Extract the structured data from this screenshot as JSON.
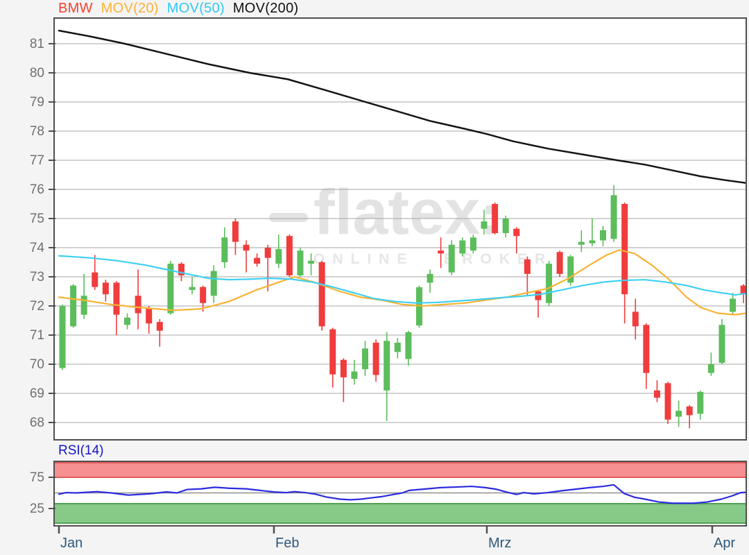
{
  "legend": {
    "symbol": "BMW",
    "mov20": "MOV(20)",
    "mov50": "MOV(50)",
    "mov200": "MOV(200)"
  },
  "watermark": {
    "logo": "flatex",
    "tagline": "ONLINE BROKER"
  },
  "rsi_label": "RSI(14)",
  "axes": {
    "price_ticks": [
      "81",
      "80",
      "79",
      "78",
      "77",
      "76",
      "75",
      "74",
      "73",
      "72",
      "71",
      "70",
      "69",
      "68"
    ],
    "rsi_ticks": [
      "75",
      "25"
    ],
    "months": [
      "Jan",
      "Feb",
      "Mrz",
      "Apr"
    ]
  },
  "colors": {
    "background": "#f4f4f5",
    "plot_background": "#ffffff",
    "gridline": "#a6a6a6",
    "border": "#4f4f4f",
    "candle_up": "#5bbd5b",
    "candle_down": "#f03c3c",
    "mov20": "#f9b234",
    "mov50": "#3fd0f2",
    "mov200": "#141414",
    "rsi_line": "#2b2be0",
    "rsi_overbought_fill": "#f79090",
    "rsi_overbought_edge": "#e25b5b",
    "rsi_oversold_fill": "#87ca87",
    "rsi_oversold_edge": "#4fa052",
    "rsi_midline": "#8f8f8f",
    "axis_text": "#6f6f6f",
    "month_text": "#2e5878",
    "rsi_label_text": "#1414c8",
    "watermark": "#e3e3e3"
  },
  "chart_data": [
    {
      "type": "candlestick",
      "title": "BMW",
      "x_axis": {
        "tick_labels": [
          "Jan",
          "Feb",
          "Mrz",
          "Apr"
        ]
      },
      "y_axis": {
        "tick_labels": [
          81,
          80,
          79,
          78,
          77,
          76,
          75,
          74,
          73,
          72,
          71,
          70,
          69,
          68
        ],
        "range": [
          67.4,
          81.9
        ]
      },
      "grid": true,
      "candles_ohlc": [
        [
          69.87,
          72.05,
          69.8,
          72.0
        ],
        [
          71.3,
          72.75,
          71.25,
          72.7
        ],
        [
          71.7,
          73.1,
          71.55,
          72.35
        ],
        [
          73.15,
          73.75,
          72.55,
          72.65
        ],
        [
          72.8,
          72.9,
          72.15,
          72.4
        ],
        [
          72.8,
          72.85,
          71.0,
          71.7
        ],
        [
          71.35,
          71.75,
          71.2,
          71.6
        ],
        [
          72.35,
          73.25,
          71.2,
          71.75
        ],
        [
          71.9,
          72.0,
          71.05,
          71.4
        ],
        [
          71.45,
          71.55,
          70.6,
          71.15
        ],
        [
          71.75,
          73.55,
          71.7,
          73.45
        ],
        [
          73.45,
          73.5,
          72.85,
          73.05
        ],
        [
          72.55,
          73.0,
          72.4,
          72.65
        ],
        [
          72.65,
          72.7,
          71.8,
          72.1
        ],
        [
          72.35,
          73.4,
          72.1,
          73.2
        ],
        [
          73.5,
          74.7,
          73.3,
          74.35
        ],
        [
          74.9,
          75.0,
          73.75,
          74.2
        ],
        [
          74.1,
          74.25,
          73.15,
          73.9
        ],
        [
          73.65,
          73.8,
          73.35,
          73.45
        ],
        [
          74.0,
          74.1,
          72.5,
          73.65
        ],
        [
          73.45,
          74.45,
          73.3,
          73.95
        ],
        [
          74.4,
          74.45,
          73.0,
          73.05
        ],
        [
          73.05,
          74.0,
          73.0,
          73.9
        ],
        [
          73.45,
          73.8,
          73.05,
          73.55
        ],
        [
          73.5,
          73.55,
          71.15,
          71.3
        ],
        [
          71.2,
          71.25,
          69.2,
          69.65
        ],
        [
          70.15,
          70.2,
          68.7,
          69.55
        ],
        [
          69.5,
          70.15,
          69.3,
          69.75
        ],
        [
          69.83,
          70.8,
          69.6,
          70.54
        ],
        [
          70.74,
          70.85,
          69.4,
          69.63
        ],
        [
          69.1,
          71.1,
          68.05,
          70.8
        ],
        [
          70.42,
          70.9,
          70.2,
          70.74
        ],
        [
          70.18,
          71.15,
          69.95,
          71.1
        ],
        [
          71.33,
          72.7,
          71.25,
          72.64
        ],
        [
          72.8,
          73.25,
          72.45,
          73.1
        ],
        [
          73.9,
          74.35,
          73.3,
          73.8
        ],
        [
          73.15,
          74.25,
          73.05,
          74.1
        ],
        [
          73.8,
          74.35,
          73.7,
          74.25
        ],
        [
          73.9,
          74.45,
          73.8,
          74.35
        ],
        [
          74.65,
          75.3,
          74.45,
          74.9
        ],
        [
          75.5,
          75.55,
          74.45,
          74.5
        ],
        [
          74.5,
          75.1,
          74.35,
          75.0
        ],
        [
          74.65,
          74.7,
          73.8,
          74.4
        ],
        [
          73.6,
          73.7,
          72.35,
          73.1
        ],
        [
          72.5,
          72.55,
          71.6,
          72.2
        ],
        [
          72.1,
          73.55,
          72.0,
          73.45
        ],
        [
          73.85,
          73.9,
          73.0,
          73.1
        ],
        [
          72.8,
          73.75,
          72.7,
          73.7
        ],
        [
          74.1,
          74.6,
          73.85,
          74.2
        ],
        [
          74.15,
          75.0,
          74.05,
          74.25
        ],
        [
          74.25,
          74.75,
          74.05,
          74.6
        ],
        [
          74.3,
          76.15,
          74.2,
          75.8
        ],
        [
          75.5,
          75.55,
          71.4,
          72.4
        ],
        [
          71.8,
          72.25,
          70.85,
          71.3
        ],
        [
          71.35,
          71.4,
          69.15,
          69.7
        ],
        [
          69.1,
          69.45,
          68.7,
          68.85
        ],
        [
          69.35,
          69.4,
          67.95,
          68.1
        ],
        [
          68.2,
          68.75,
          67.85,
          68.4
        ],
        [
          68.55,
          68.6,
          67.8,
          68.25
        ],
        [
          68.3,
          69.1,
          68.1,
          69.05
        ],
        [
          69.7,
          70.4,
          69.6,
          70.0
        ],
        [
          70.05,
          71.55,
          70.0,
          71.35
        ],
        [
          71.8,
          72.45,
          71.7,
          72.25
        ],
        [
          72.7,
          72.75,
          72.1,
          72.4
        ]
      ],
      "series": [
        {
          "name": "MOV(20)",
          "color": "#f9b234",
          "points": [
            [
              85,
              72.3
            ],
            [
              120,
              72.2
            ],
            [
              160,
              72.05
            ],
            [
              200,
              71.95
            ],
            [
              250,
              71.85
            ],
            [
              290,
              71.9
            ],
            [
              330,
              72.15
            ],
            [
              370,
              72.55
            ],
            [
              400,
              72.8
            ],
            [
              425,
              73.0
            ],
            [
              455,
              72.8
            ],
            [
              490,
              72.5
            ],
            [
              520,
              72.3
            ],
            [
              550,
              72.2
            ],
            [
              580,
              72.05
            ],
            [
              610,
              72.0
            ],
            [
              640,
              72.05
            ],
            [
              670,
              72.1
            ],
            [
              700,
              72.2
            ],
            [
              730,
              72.3
            ],
            [
              760,
              72.45
            ],
            [
              790,
              72.6
            ],
            [
              820,
              72.95
            ],
            [
              850,
              73.4
            ],
            [
              875,
              73.75
            ],
            [
              893,
              73.92
            ],
            [
              915,
              73.8
            ],
            [
              940,
              73.4
            ],
            [
              965,
              72.9
            ],
            [
              990,
              72.3
            ],
            [
              1010,
              71.95
            ],
            [
              1035,
              71.75
            ],
            [
              1060,
              71.7
            ],
            [
              1076,
              71.75
            ]
          ]
        },
        {
          "name": "MOV(50)",
          "color": "#3fd0f2",
          "points": [
            [
              85,
              73.72
            ],
            [
              130,
              73.65
            ],
            [
              170,
              73.55
            ],
            [
              210,
              73.4
            ],
            [
              240,
              73.25
            ],
            [
              270,
              73.1
            ],
            [
              300,
              72.95
            ],
            [
              330,
              72.9
            ],
            [
              360,
              72.92
            ],
            [
              390,
              72.95
            ],
            [
              420,
              72.92
            ],
            [
              450,
              72.82
            ],
            [
              480,
              72.65
            ],
            [
              510,
              72.45
            ],
            [
              540,
              72.25
            ],
            [
              570,
              72.15
            ],
            [
              600,
              72.1
            ],
            [
              630,
              72.12
            ],
            [
              660,
              72.17
            ],
            [
              690,
              72.22
            ],
            [
              720,
              72.28
            ],
            [
              750,
              72.33
            ],
            [
              780,
              72.4
            ],
            [
              810,
              72.55
            ],
            [
              840,
              72.7
            ],
            [
              870,
              72.82
            ],
            [
              900,
              72.88
            ],
            [
              930,
              72.9
            ],
            [
              960,
              72.82
            ],
            [
              990,
              72.7
            ],
            [
              1015,
              72.55
            ],
            [
              1040,
              72.45
            ],
            [
              1060,
              72.38
            ],
            [
              1076,
              72.43
            ]
          ]
        },
        {
          "name": "MOV(200)",
          "color": "#141414",
          "points": [
            [
              85,
              81.45
            ],
            [
              130,
              81.25
            ],
            [
              180,
              81.0
            ],
            [
              240,
              80.65
            ],
            [
              300,
              80.3
            ],
            [
              360,
              80.0
            ],
            [
              415,
              79.78
            ],
            [
              470,
              79.4
            ],
            [
              520,
              79.05
            ],
            [
              570,
              78.7
            ],
            [
              620,
              78.35
            ],
            [
              670,
              78.08
            ],
            [
              702,
              77.9
            ],
            [
              740,
              77.65
            ],
            [
              790,
              77.4
            ],
            [
              840,
              77.2
            ],
            [
              890,
              77.0
            ],
            [
              930,
              76.85
            ],
            [
              970,
              76.65
            ],
            [
              1010,
              76.45
            ],
            [
              1045,
              76.32
            ],
            [
              1076,
              76.22
            ]
          ]
        }
      ]
    },
    {
      "type": "line",
      "title": "RSI(14)",
      "y_axis": {
        "tick_labels": [
          75,
          25
        ],
        "range": [
          0,
          100
        ]
      },
      "midline": 50,
      "bands": {
        "overbought": {
          "from": 75,
          "to": 100,
          "color": "#f79090"
        },
        "oversold": {
          "from": 0,
          "to": 30,
          "color": "#87ca87"
        }
      },
      "points": [
        [
          85,
          48
        ],
        [
          95,
          50.5
        ],
        [
          110,
          50
        ],
        [
          125,
          51
        ],
        [
          140,
          52
        ],
        [
          160,
          50
        ],
        [
          185,
          46.5
        ],
        [
          215,
          48.5
        ],
        [
          240,
          51.5
        ],
        [
          255,
          50
        ],
        [
          270,
          55.5
        ],
        [
          290,
          56.5
        ],
        [
          310,
          59
        ],
        [
          330,
          57.5
        ],
        [
          355,
          56.5
        ],
        [
          375,
          54
        ],
        [
          395,
          51.5
        ],
        [
          413,
          50.5
        ],
        [
          425,
          52
        ],
        [
          440,
          50.5
        ],
        [
          455,
          48
        ],
        [
          470,
          43.5
        ],
        [
          490,
          40
        ],
        [
          505,
          39
        ],
        [
          520,
          40
        ],
        [
          535,
          42
        ],
        [
          550,
          44
        ],
        [
          565,
          47
        ],
        [
          580,
          50
        ],
        [
          590,
          54
        ],
        [
          610,
          56
        ],
        [
          635,
          58.5
        ],
        [
          660,
          59.5
        ],
        [
          680,
          60.5
        ],
        [
          700,
          58.5
        ],
        [
          715,
          56
        ],
        [
          730,
          51.5
        ],
        [
          745,
          47.5
        ],
        [
          755,
          50.5
        ],
        [
          770,
          48.5
        ],
        [
          790,
          50.5
        ],
        [
          810,
          53.5
        ],
        [
          830,
          56
        ],
        [
          850,
          58.5
        ],
        [
          870,
          60.5
        ],
        [
          885,
          63
        ],
        [
          900,
          49
        ],
        [
          915,
          43
        ],
        [
          930,
          40
        ],
        [
          950,
          35.5
        ],
        [
          970,
          33.5
        ],
        [
          1000,
          33.5
        ],
        [
          1020,
          35.5
        ],
        [
          1040,
          40
        ],
        [
          1055,
          45
        ],
        [
          1068,
          50.5
        ],
        [
          1076,
          51
        ]
      ]
    }
  ]
}
